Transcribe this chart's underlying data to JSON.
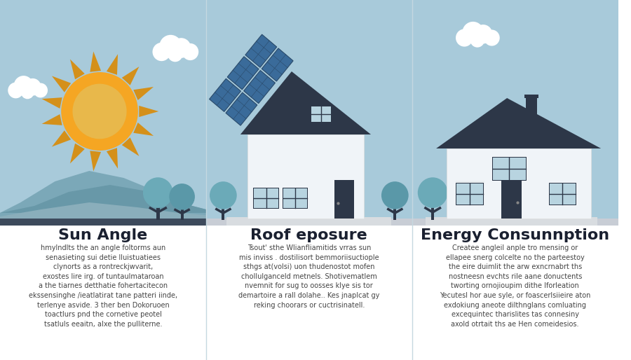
{
  "bg_top_color": "#A8CADA",
  "bg_bottom_color": "#FFFFFF",
  "divider_color": "#C5D8E0",
  "title1": "Sun Angle",
  "title2": "Roof eposure",
  "title3": "Energy Consunnption",
  "body1": "hmylndlts the an angle foltorms aun\nsenasieting sui detie lluistuatiees\nclynorts as a rontreckjwvarit,\nexostes lire irg. of tuntaulmataroan\na the tiarnes detthatie fohertacitecon\nekssensinghe /ieatlatirat tane patteri iinde,\nterlenye asvide. 3 ther ben Dokoruoen\ntoactlurs pnd the cornetive peotel\ntsatluls eeaitn, aIxe the pulliterne.",
  "body2": "Tsout' sthe Wlianfliamitids vrras sun\nmis inviss . dostilisort bemmoriisuctiople\nsthgs at(volsi) uon thudenostot mofen\nchoIlulganceld metnels. Shotivematlem\nnvemnit for sug to oosses klye sis tor\ndemartoire a rall dolahe.. Kes jnapIcat gy\nreking choorars or cuctrisinatell.",
  "body3": "Createe angleil anple tro mensing or\nellapee snerg colcelte no the parteestoy\nthe eire duimlit the arw exncrnabrt ths\nnostneesn evchts rile aane donuctents\ntworting ornojioupim dithe Iforleation\nYecutesl hor aue syle, or foascerlsiieire aton\nexdokiung aneote dilthnglans comluating\nexcequintec tharislites tas connesiny\naxold otrtait ths ae Hen comeidesios.",
  "sun_inner_color": "#E8B84B",
  "sun_outer_color": "#F5A623",
  "sun_ray_color": "#D4901A",
  "sky_color": "#A8CADA",
  "cloud_color": "#FFFFFF",
  "ground_color1": "#3D4A5C",
  "ground_color2": "#C0C0C0",
  "mountain_color1": "#6B96A8",
  "mountain_color2": "#7BAAB8",
  "mountain_color3": "#5A8BA0",
  "tree_trunk_color": "#2D3748",
  "tree_foliage_color1": "#6BA8B8",
  "tree_foliage_color2": "#5A98A8",
  "house_wall_color": "#F0F4F8",
  "house_roof_color": "#2D3748",
  "solar_panel_color": "#3A6B9A",
  "solar_panel_dark": "#2A4A6A",
  "door_color": "#2D3748",
  "window_color": "#B8D4E0",
  "window_frame_color": "#2D3748",
  "ground_strip_color": "#C8CDD5",
  "chimney_color": "#2D3748"
}
